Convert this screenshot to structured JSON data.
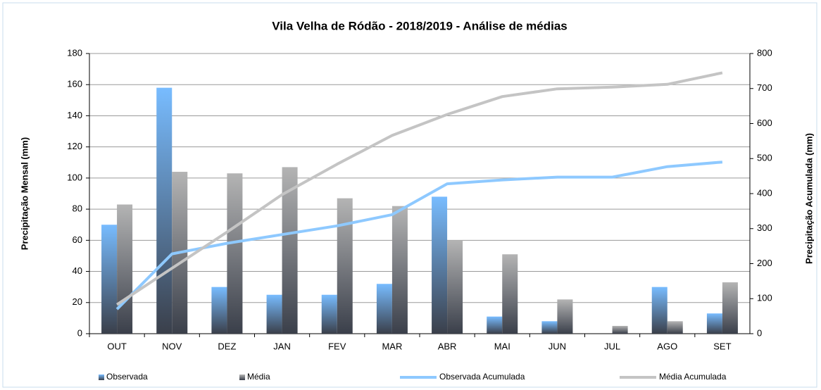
{
  "chart_data": {
    "type": "bar",
    "title": "Vila Velha de Ródão - 2018/2019  - Análise de médias",
    "y_label": "Precipitação Mensal (mm)",
    "y2_label": "Precipitação Acumulada (mm)",
    "categories": [
      "OUT",
      "NOV",
      "DEZ",
      "JAN",
      "FEV",
      "MAR",
      "ABR",
      "MAI",
      "JUN",
      "JUL",
      "AGO",
      "SET"
    ],
    "series": [
      {
        "name": "Observada",
        "type": "bar",
        "color": "#78bcff",
        "values": [
          70,
          158,
          30,
          25,
          25,
          32,
          88,
          11,
          8,
          0,
          30,
          13
        ]
      },
      {
        "name": "Média",
        "type": "bar",
        "color": "#b4b4b4",
        "values": [
          83,
          104,
          103,
          107,
          87,
          82,
          60,
          51,
          22,
          5,
          8,
          33
        ]
      },
      {
        "name": "Observada Acumulada",
        "type": "line",
        "axis": "y2",
        "color": "#8ec9ff",
        "values": [
          70,
          228,
          258,
          283,
          308,
          340,
          428,
          439,
          447,
          447,
          477,
          490
        ]
      },
      {
        "name": "Média Acumulada",
        "type": "line",
        "axis": "y2",
        "color": "#c4c4c4",
        "values": [
          83,
          187,
          290,
          397,
          484,
          566,
          626,
          677,
          699,
          704,
          712,
          745
        ]
      }
    ],
    "ylim": [
      0,
      180
    ],
    "yticks": [
      0,
      20,
      40,
      60,
      80,
      100,
      120,
      140,
      160,
      180
    ],
    "y2lim": [
      0,
      800
    ],
    "y2ticks": [
      0,
      100,
      200,
      300,
      400,
      500,
      600,
      700,
      800
    ],
    "grid": true,
    "legend": "bottom"
  }
}
